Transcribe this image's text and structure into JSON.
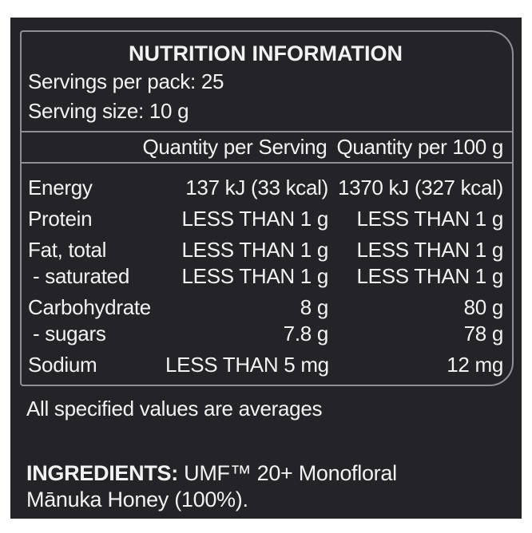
{
  "panel": {
    "title": "NUTRITION INFORMATION",
    "servings_per_pack": "Servings per pack: 25",
    "serving_size": "Serving size: 10 g"
  },
  "table": {
    "col_headers": [
      "Quantity per Serving",
      "Quantity per 100 g"
    ],
    "rows": [
      {
        "name": "Energy",
        "per_serving": "137 kJ (33 kcal)",
        "per_100g": "1370 kJ (327 kcal)",
        "sub": false
      },
      {
        "name": "Protein",
        "per_serving": "LESS THAN 1 g",
        "per_100g": "LESS THAN 1 g",
        "sub": false
      },
      {
        "name": "Fat, total",
        "per_serving": "LESS THAN 1 g",
        "per_100g": "LESS THAN 1 g",
        "sub": false
      },
      {
        "name": "- saturated",
        "per_serving": "LESS THAN 1 g",
        "per_100g": "LESS THAN 1 g",
        "sub": true
      },
      {
        "name": "Carbohydrate",
        "per_serving": "8 g",
        "per_100g": "80 g",
        "sub": false
      },
      {
        "name": "- sugars",
        "per_serving": "7.8 g",
        "per_100g": "78 g",
        "sub": true
      },
      {
        "name": "Sodium",
        "per_serving": "LESS THAN 5 mg",
        "per_100g": "12 mg",
        "sub": false
      }
    ]
  },
  "footnote": "All specified values are averages",
  "ingredients": {
    "label": "INGREDIENTS:",
    "text": " UMF™ 20+ Monofloral Mānuka Honey (100%)."
  },
  "colors": {
    "page_background": "#ffffff",
    "label_background": "#242428",
    "text": "#f2f2f2",
    "border": "#8e9094"
  }
}
